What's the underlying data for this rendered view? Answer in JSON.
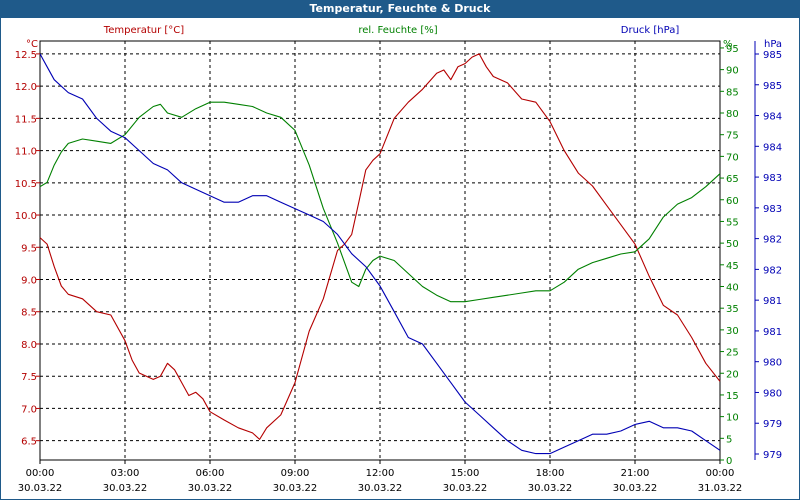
{
  "window": {
    "title": "Temperatur, Feuchte & Druck"
  },
  "colors": {
    "temp": "#b40000",
    "hum": "#008000",
    "press": "#0000b4",
    "title_bar": "#1f5a8a",
    "grid": "#000000"
  },
  "chart_data": {
    "type": "line",
    "title": "Temperatur, Feuchte & Druck",
    "x_ticks": [
      {
        "time": "00:00",
        "date": "30.03.22"
      },
      {
        "time": "03:00",
        "date": "30.03.22"
      },
      {
        "time": "06:00",
        "date": "30.03.22"
      },
      {
        "time": "09:00",
        "date": "30.03.22"
      },
      {
        "time": "12:00",
        "date": "30.03.22"
      },
      {
        "time": "15:00",
        "date": "30.03.22"
      },
      {
        "time": "18:00",
        "date": "30.03.22"
      },
      {
        "time": "21:00",
        "date": "30.03.22"
      },
      {
        "time": "00:00",
        "date": "31.03.22"
      }
    ],
    "x_range_hours": [
      0,
      24
    ],
    "grid": true,
    "axes": {
      "temp": {
        "label": "Temperatur [°C]",
        "unit": "°C",
        "range": [
          6.2,
          12.7
        ],
        "ticks": [
          "12.5",
          "12.0",
          "11.5",
          "11.0",
          "10.5",
          "10.0",
          "9.5",
          "9.0",
          "8.5",
          "8.0",
          "7.5",
          "7.0",
          "6.5"
        ]
      },
      "hum": {
        "label": "rel. Feuchte [%]",
        "unit": "%",
        "range": [
          0,
          96.6
        ],
        "ticks": [
          "95",
          "90",
          "85",
          "80",
          "75",
          "70",
          "65",
          "60",
          "55",
          "50",
          "45",
          "40",
          "35",
          "30",
          "25",
          "20",
          "15",
          "10",
          "5",
          "0"
        ]
      },
      "press": {
        "label": "Druck [hPa]",
        "unit": "hPa",
        "range": [
          978.8,
          985.3
        ],
        "ticks": [
          "985",
          "985",
          "984",
          "984",
          "983",
          "983",
          "982",
          "982",
          "981",
          "981",
          "980",
          "980",
          "979",
          "979"
        ]
      }
    },
    "series": [
      {
        "name": "Temperatur [°C]",
        "axis": "temp",
        "x": [
          0,
          0.25,
          0.5,
          0.75,
          1,
          1.5,
          2,
          2.5,
          3,
          3.25,
          3.5,
          4,
          4.25,
          4.5,
          4.75,
          5,
          5.25,
          5.5,
          5.75,
          6,
          6.5,
          7,
          7.5,
          7.75,
          8,
          8.5,
          9,
          9.5,
          10,
          10.5,
          10.75,
          11,
          11.25,
          11.5,
          11.75,
          12,
          12.5,
          13,
          13.5,
          14,
          14.25,
          14.5,
          14.75,
          15,
          15.25,
          15.5,
          15.75,
          16,
          16.5,
          17,
          17.5,
          18,
          18.5,
          19,
          19.5,
          20,
          20.5,
          21,
          21.5,
          22,
          22.5,
          23,
          23.5,
          24
        ],
        "values": [
          9.65,
          9.55,
          9.2,
          8.9,
          8.77,
          8.7,
          8.5,
          8.45,
          8.05,
          7.75,
          7.55,
          7.45,
          7.5,
          7.7,
          7.6,
          7.4,
          7.2,
          7.25,
          7.15,
          6.95,
          6.82,
          6.7,
          6.62,
          6.52,
          6.7,
          6.9,
          7.4,
          8.2,
          8.7,
          9.45,
          9.55,
          9.7,
          10.2,
          10.7,
          10.85,
          10.95,
          11.5,
          11.75,
          11.95,
          12.2,
          12.25,
          12.1,
          12.3,
          12.35,
          12.45,
          12.5,
          12.3,
          12.15,
          12.05,
          11.8,
          11.75,
          11.45,
          11.0,
          10.65,
          10.45,
          10.15,
          9.85,
          9.55,
          9.05,
          8.6,
          8.45,
          8.1,
          7.7,
          7.42
        ]
      },
      {
        "name": "rel. Feuchte [%]",
        "axis": "hum",
        "x": [
          0,
          0.25,
          0.5,
          0.75,
          1,
          1.5,
          2,
          2.5,
          3,
          3.5,
          4,
          4.25,
          4.5,
          5,
          5.5,
          6,
          6.5,
          7,
          7.5,
          8,
          8.5,
          9,
          9.5,
          10,
          10.5,
          11,
          11.25,
          11.5,
          11.75,
          12,
          12.5,
          13,
          13.5,
          14,
          14.5,
          15,
          15.5,
          16,
          16.5,
          17,
          17.5,
          18,
          18.5,
          19,
          19.5,
          20,
          20.5,
          21,
          21.5,
          22,
          22.5,
          23,
          23.5,
          24
        ],
        "values": [
          63,
          64,
          68,
          71,
          73,
          74,
          73.5,
          73,
          75,
          79,
          81.5,
          82,
          80,
          79,
          81,
          82.5,
          82.5,
          82,
          81.5,
          80,
          79,
          76,
          68,
          58,
          50,
          41,
          40,
          44,
          46,
          47,
          46,
          43,
          40,
          38,
          36.5,
          36.5,
          37,
          37.5,
          38,
          38.5,
          39,
          39,
          41,
          44,
          45.5,
          46.5,
          47.5,
          48,
          51,
          56,
          59,
          60.5,
          63,
          66
        ]
      },
      {
        "name": "Druck [hPa]",
        "axis": "press",
        "x": [
          0,
          0.25,
          0.5,
          1,
          1.5,
          2,
          2.5,
          3,
          3.5,
          4,
          4.5,
          5,
          5.5,
          6,
          6.5,
          7,
          7.5,
          8,
          8.5,
          9,
          9.5,
          10,
          10.5,
          11,
          11.5,
          12,
          12.5,
          13,
          13.5,
          14,
          14.5,
          15,
          15.5,
          16,
          16.5,
          17,
          17.5,
          18,
          18.5,
          19,
          19.5,
          20,
          20.5,
          21,
          21.5,
          22,
          22.5,
          23,
          23.5,
          24
        ],
        "values": [
          985.1,
          984.9,
          984.7,
          984.5,
          984.4,
          984.1,
          983.9,
          983.8,
          983.6,
          983.4,
          983.3,
          983.1,
          983.0,
          982.9,
          982.8,
          982.8,
          982.9,
          982.9,
          982.8,
          982.7,
          982.6,
          982.5,
          982.3,
          982.0,
          981.8,
          981.5,
          981.1,
          980.7,
          980.6,
          980.3,
          980.0,
          979.7,
          979.5,
          979.3,
          979.1,
          978.95,
          978.9,
          978.9,
          979.0,
          979.1,
          979.2,
          979.2,
          979.25,
          979.35,
          979.4,
          979.3,
          979.3,
          979.25,
          979.1,
          978.95
        ]
      }
    ]
  }
}
